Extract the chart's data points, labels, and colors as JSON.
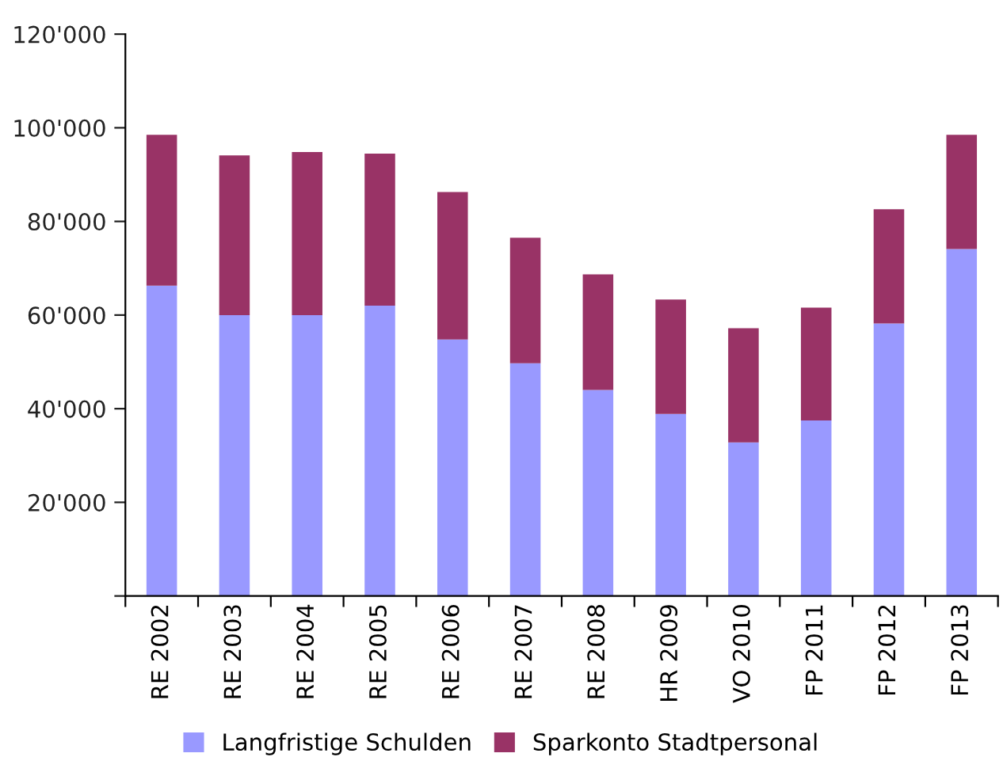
{
  "chart_data": {
    "type": "bar",
    "stacked": true,
    "categories": [
      "RE 2002",
      "RE 2003",
      "RE 2004",
      "RE 2005",
      "RE 2006",
      "RE 2007",
      "RE 2008",
      "HR 2009",
      "VO 2010",
      "FP 2011",
      "FP 2012",
      "FP 2013"
    ],
    "series": [
      {
        "name": "Langfristige Schulden",
        "color": "#9999ff",
        "values": [
          66300,
          60000,
          60000,
          62000,
          54800,
          49700,
          44000,
          38900,
          32800,
          37500,
          58200,
          74100
        ]
      },
      {
        "name": "Sparkonto Stadtpersonal",
        "color": "#993366",
        "values": [
          32200,
          34100,
          34800,
          32500,
          31500,
          26800,
          24700,
          24400,
          24400,
          24100,
          24400,
          24400
        ]
      }
    ],
    "ylim": [
      0,
      120000
    ],
    "yticks": [
      {
        "value": 0,
        "label": null
      },
      {
        "value": 20000,
        "label": "20'000"
      },
      {
        "value": 40000,
        "label": "40'000"
      },
      {
        "value": 60000,
        "label": "60'000"
      },
      {
        "value": 80000,
        "label": "80'000"
      },
      {
        "value": 100000,
        "label": "100'000"
      },
      {
        "value": 120000,
        "label": "120'000"
      }
    ],
    "grid": false,
    "legend": "bottom"
  }
}
